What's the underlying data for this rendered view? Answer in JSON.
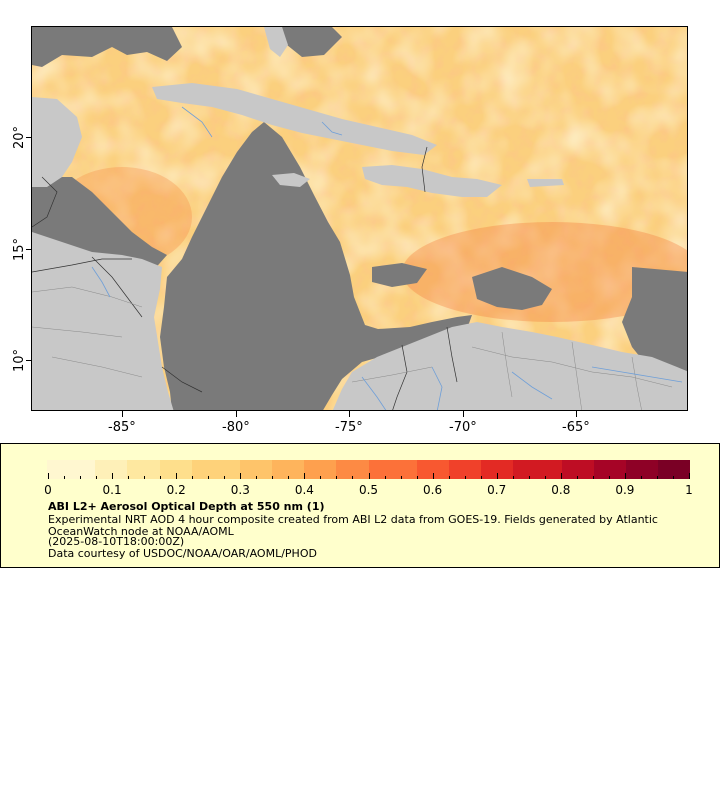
{
  "map": {
    "lon_ticks": [
      "-85°",
      "-80°",
      "-75°",
      "-70°",
      "-65°"
    ],
    "lat_ticks": [
      "20°",
      "15°",
      "10°"
    ],
    "colors": {
      "land": "#c8c8c8",
      "no_data": "#7a7a7a",
      "rivers": "#6f9fd8",
      "borders": "#333333"
    }
  },
  "legend": {
    "scale_labels": [
      "0",
      "0.1",
      "0.2",
      "0.3",
      "0.4",
      "0.5",
      "0.6",
      "0.7",
      "0.8",
      "0.9",
      "1"
    ],
    "colors": [
      "#fff7d0",
      "#fef0b8",
      "#fee8a0",
      "#fedf8c",
      "#fed27a",
      "#fec46a",
      "#feb45c",
      "#fea04e",
      "#fd8a44",
      "#fc7139",
      "#f85830",
      "#f0412a",
      "#e32a24",
      "#d21a22",
      "#be0d24",
      "#a60426",
      "#8e0126",
      "#7a0025"
    ],
    "title": "ABI L2+ Aerosol Optical Depth at 550 nm (1)",
    "description": "Experimental NRT AOD 4 hour composite created from ABI L2 data from GOES-19. Fields generated by Atlantic OceanWatch node at NOAA/AOML",
    "timestamp": "(2025-08-10T18:00:00Z)",
    "credit": "Data courtesy of USDOC/NOAA/OAR/AOML/PHOD"
  }
}
